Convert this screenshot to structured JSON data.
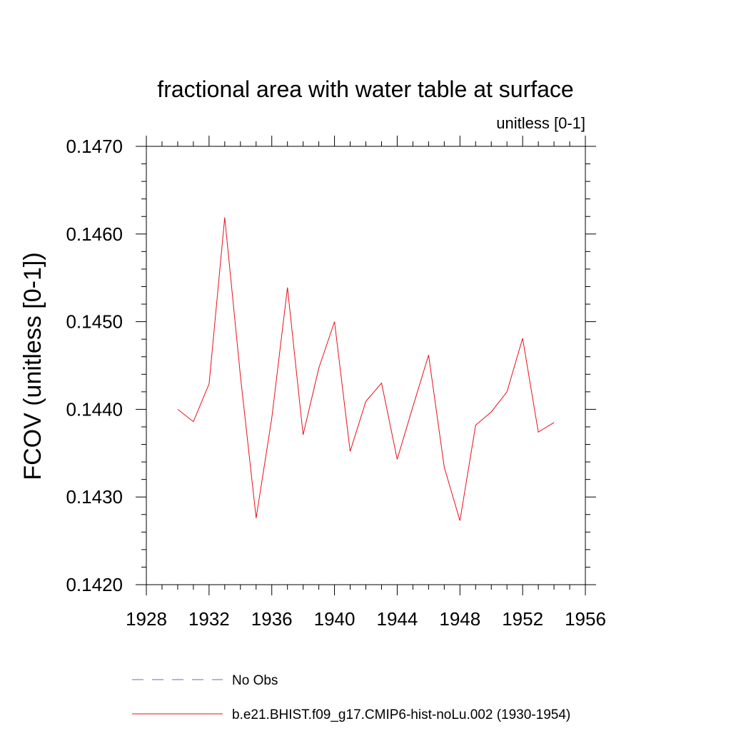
{
  "chart_data": {
    "type": "line",
    "title": "fractional area with water table at surface",
    "subtitle": "unitless [0-1]",
    "xlabel": "",
    "ylabel": "FCOV  (unitless [0-1])",
    "xlim": [
      1928,
      1956
    ],
    "ylim": [
      0.142,
      0.147
    ],
    "x_ticks": [
      "1928",
      "1932",
      "1936",
      "1940",
      "1944",
      "1948",
      "1952",
      "1956"
    ],
    "y_ticks": [
      "0.1420",
      "0.1430",
      "0.1440",
      "0.1450",
      "0.1460",
      "0.1470"
    ],
    "grid": false,
    "legend_position": "bottom",
    "series": [
      {
        "name": "No Obs",
        "color": "#6a6ab8",
        "dash": "dashed",
        "x": [],
        "values": []
      },
      {
        "name": "b.e21.BHIST.f09_g17.CMIP6-hist-noLu.002 (1930-1954)",
        "color": "#e8101a",
        "dash": "solid",
        "x": [
          1930,
          1931,
          1932,
          1933,
          1934,
          1935,
          1936,
          1937,
          1938,
          1939,
          1940,
          1941,
          1942,
          1943,
          1944,
          1945,
          1946,
          1947,
          1948,
          1949,
          1950,
          1951,
          1952,
          1953,
          1954
        ],
        "values": [
          0.144,
          0.14386,
          0.14429,
          0.14619,
          0.14438,
          0.14276,
          0.1439,
          0.14539,
          0.14371,
          0.14447,
          0.145,
          0.14352,
          0.14409,
          0.1443,
          0.14343,
          0.14403,
          0.14462,
          0.14334,
          0.14273,
          0.14382,
          0.14397,
          0.1442,
          0.14481,
          0.14374,
          0.14385
        ]
      }
    ]
  }
}
